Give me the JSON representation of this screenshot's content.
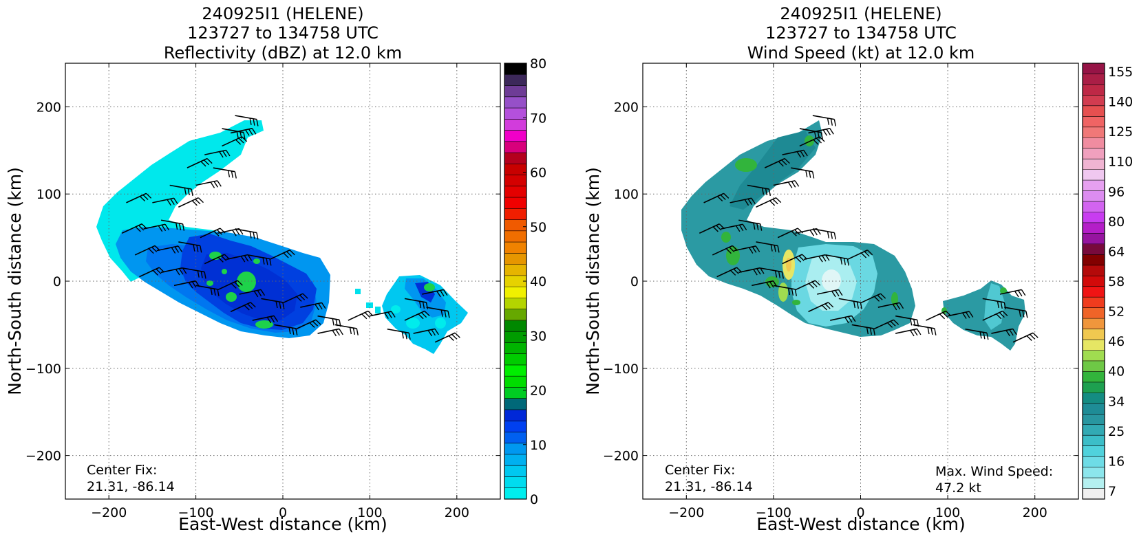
{
  "chart_data": [
    {
      "type": "heatmap",
      "title": [
        "240925I1 (HELENE)",
        "123727 to 134758 UTC",
        "Reflectivity (dBZ) at 12.0 km"
      ],
      "xlabel": "East-West distance (km)",
      "ylabel": "North-South distance (km)",
      "xlim": [
        -250,
        250
      ],
      "ylim": [
        -250,
        250
      ],
      "x_ticks": [
        -200,
        -100,
        0,
        100,
        200
      ],
      "y_ticks": [
        -200,
        -100,
        0,
        100,
        200
      ],
      "x_tick_labels": [
        "−200",
        "−100",
        "0",
        "100",
        "200"
      ],
      "y_tick_labels": [
        "−200",
        "−100",
        "0",
        "100",
        "200"
      ],
      "grid": true,
      "annotations": [
        {
          "text": "Center Fix:\n21.31, -86.14",
          "position": "lower-left"
        }
      ],
      "colorbar": {
        "ticks": [
          0,
          10,
          20,
          30,
          40,
          50,
          60,
          70,
          80
        ],
        "tick_labels": [
          "0",
          "10",
          "20",
          "30",
          "40",
          "50",
          "60",
          "70",
          "80"
        ],
        "colors": [
          "#00eeee",
          "#00dcef",
          "#00c8f0",
          "#00b0f0",
          "#0098f0",
          "#0060f0",
          "#0040f0",
          "#0028d8",
          "#006878",
          "#00cc22",
          "#00dd00",
          "#00ee00",
          "#00cc00",
          "#00b400",
          "#009c00",
          "#008800",
          "#66a800",
          "#b4d400",
          "#f0f000",
          "#e6d200",
          "#e6b400",
          "#e69600",
          "#f08200",
          "#f06e00",
          "#f05a00",
          "#f01e00",
          "#f00000",
          "#e40000",
          "#d40000",
          "#c80000",
          "#b4001e",
          "#d8007c",
          "#f000c8",
          "#d23cdc",
          "#b450dc",
          "#9650c8",
          "#6e3c96",
          "#3c285a",
          "#000000"
        ]
      },
      "region_levels": [
        {
          "label": "outer echo",
          "value": 2
        },
        {
          "label": "main band",
          "value": 8
        },
        {
          "label": "band core",
          "value": 12
        },
        {
          "label": "convective cells",
          "value": 22
        },
        {
          "label": "east cluster",
          "value": 8
        }
      ]
    },
    {
      "type": "heatmap",
      "title": [
        "240925I1 (HELENE)",
        "123727 to 134758 UTC",
        "Wind Speed (kt) at 12.0 km"
      ],
      "xlabel": "East-West distance (km)",
      "ylabel": "North-South distance (km)",
      "xlim": [
        -250,
        250
      ],
      "ylim": [
        -250,
        250
      ],
      "x_ticks": [
        -200,
        -100,
        0,
        100,
        200
      ],
      "y_ticks": [
        -200,
        -100,
        0,
        100,
        200
      ],
      "x_tick_labels": [
        "−200",
        "−100",
        "0",
        "100",
        "200"
      ],
      "y_tick_labels": [
        "−200",
        "−100",
        "0",
        "100",
        "200"
      ],
      "grid": true,
      "annotations": [
        {
          "text": "Center Fix:\n21.31, -86.14",
          "position": "lower-left"
        },
        {
          "text": "Max. Wind Speed:\n47.2 kt",
          "position": "lower-right"
        }
      ],
      "max_wind_speed_kt": 47.2,
      "colorbar": {
        "tick_labels": [
          "7",
          "16",
          "25",
          "34",
          "40",
          "46",
          "52",
          "58",
          "64",
          "80",
          "96",
          "110",
          "125",
          "140",
          "155"
        ],
        "colors": [
          "#f0f0f0",
          "#b4f0f0",
          "#8ce6ec",
          "#6edce6",
          "#50d2dc",
          "#3cbec8",
          "#32aab4",
          "#2896a0",
          "#1e8c96",
          "#148c82",
          "#1ea050",
          "#32b43c",
          "#6ec846",
          "#a0dc50",
          "#e6e664",
          "#f0c850",
          "#f0963c",
          "#f06428",
          "#f03c1e",
          "#f01414",
          "#d20a0a",
          "#b40a0a",
          "#820000",
          "#780a3c",
          "#9614a0",
          "#b41ec8",
          "#c83cf0",
          "#d264f0",
          "#dc8cf0",
          "#e6a0f0",
          "#f0c8f0",
          "#f0b4d2",
          "#f0a0be",
          "#f08ca0",
          "#f07878",
          "#f06464",
          "#e65050",
          "#d23c50",
          "#be2846",
          "#aa1e46",
          "#961446"
        ]
      },
      "region_levels": [
        {
          "label": "band body",
          "value": 26
        },
        {
          "label": "inner light core",
          "value": 12
        },
        {
          "label": "west max",
          "value": 40
        },
        {
          "label": "green patches",
          "value": 34
        },
        {
          "label": "east cluster",
          "value": 25
        }
      ]
    }
  ]
}
